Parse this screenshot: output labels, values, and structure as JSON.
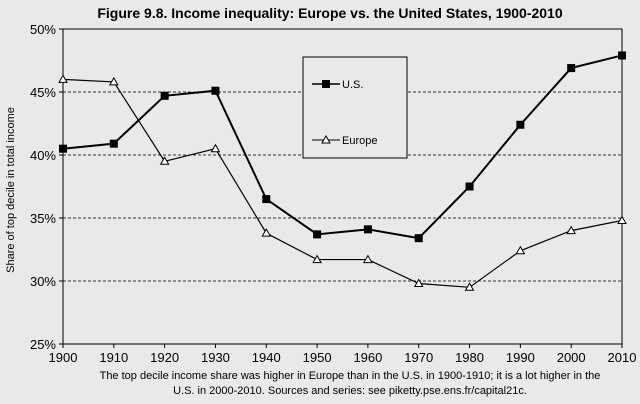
{
  "chart_data": {
    "type": "line",
    "title": "Figure 9.8. Income inequality: Europe vs. the United States, 1900-2010",
    "xlabel": "",
    "ylabel": "Share of top decile in total income",
    "x": [
      "1900",
      "1910",
      "1920",
      "1930",
      "1940",
      "1950",
      "1960",
      "1970",
      "1980",
      "1990",
      "2000",
      "2010"
    ],
    "ylim": [
      25,
      50
    ],
    "yticks": [
      "25%",
      "30%",
      "35%",
      "40%",
      "45%",
      "50%"
    ],
    "grid": "horizontal dashed",
    "legend_position": "top-center",
    "series": [
      {
        "name": "U.S.",
        "marker": "filled-square",
        "values": [
          40.5,
          40.9,
          44.7,
          45.1,
          36.5,
          33.7,
          34.1,
          33.4,
          37.5,
          42.4,
          46.9,
          47.9
        ]
      },
      {
        "name": "Europe",
        "marker": "open-triangle",
        "values": [
          46.0,
          45.8,
          39.5,
          40.5,
          33.8,
          31.7,
          31.7,
          29.8,
          29.5,
          32.4,
          34.0,
          34.8
        ]
      }
    ],
    "caption_lines": [
      "The top decile income share was higher in Europe than in the U.S. in 1900-1910; it is a lot higher in the",
      "U.S. in 2000-2010. Sources and series: see piketty.pse.ens.fr/capital21c."
    ]
  }
}
